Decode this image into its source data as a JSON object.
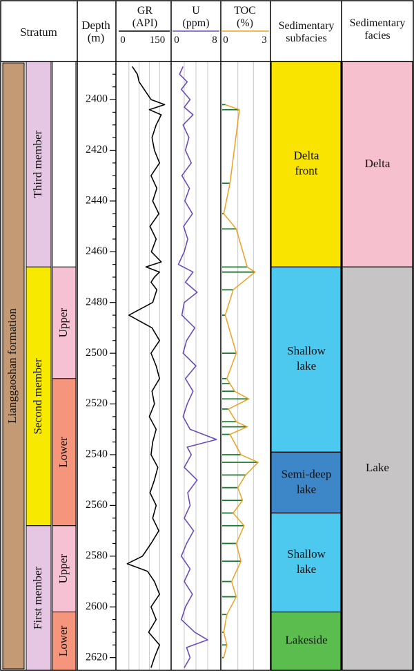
{
  "header": {
    "stratum": "Stratum",
    "depth": [
      "Depth",
      "(m)"
    ],
    "gr": {
      "name": "GR",
      "unit": "(API)",
      "min": "0",
      "max": "150"
    },
    "u": {
      "name": "U",
      "unit": "(ppm)",
      "min": "0",
      "max": "8"
    },
    "toc": {
      "name": "TOC",
      "unit": "(%)",
      "min": "0",
      "max": "3"
    },
    "subfacies": [
      "Sedimentary",
      "subfacies"
    ],
    "facies": [
      "Sedimentary",
      "facies"
    ]
  },
  "colors": {
    "formation": "#c49a75",
    "third_member": "#e5c7e3",
    "second_member": "#f7ea00",
    "first_member": "#e5c7e3",
    "upper": "#f7c1d4",
    "lower": "#f5957c",
    "delta_front": "#f9e400",
    "shallow_lake": "#4dc8ef",
    "semi_deep_lake": "#3d86c7",
    "lakeside": "#5cbd4f",
    "delta": "#f6c0cf",
    "lake": "#c6c4c5",
    "gr_curve": "#000000",
    "u_curve": "#6a4bbd",
    "toc_bar": "#1b7a2e",
    "toc_line": "#f0a020"
  },
  "formation": "Lianggaoshan formation",
  "members": [
    {
      "name": "Third member",
      "top": 2385,
      "bottom": 2466,
      "color": "third_member"
    },
    {
      "name": "Second member",
      "top": 2466,
      "bottom": 2568,
      "color": "second_member"
    },
    {
      "name": "First member",
      "top": 2568,
      "bottom": 2625,
      "color": "first_member"
    }
  ],
  "submembers": [
    {
      "name": "",
      "top": 2385,
      "bottom": 2466,
      "color": "white"
    },
    {
      "name": "Upper",
      "top": 2466,
      "bottom": 2510,
      "color": "upper"
    },
    {
      "name": "Lower",
      "top": 2510,
      "bottom": 2568,
      "color": "lower"
    },
    {
      "name": "Upper",
      "top": 2568,
      "bottom": 2602,
      "color": "upper"
    },
    {
      "name": "Lower",
      "top": 2602,
      "bottom": 2625,
      "color": "lower"
    }
  ],
  "subfacies": [
    {
      "lines": [
        "Delta",
        "front"
      ],
      "top": 2385,
      "bottom": 2466,
      "color": "delta_front"
    },
    {
      "lines": [
        "Shallow",
        "lake"
      ],
      "top": 2466,
      "bottom": 2539,
      "color": "shallow_lake"
    },
    {
      "lines": [
        "Semi-deep",
        "lake"
      ],
      "top": 2539,
      "bottom": 2563,
      "color": "semi_deep_lake"
    },
    {
      "lines": [
        "Shallow",
        "lake"
      ],
      "top": 2563,
      "bottom": 2602,
      "color": "shallow_lake"
    },
    {
      "lines": [
        "Lakeside"
      ],
      "top": 2602,
      "bottom": 2625,
      "color": "lakeside"
    }
  ],
  "facies": [
    {
      "name": "Delta",
      "top": 2385,
      "bottom": 2466,
      "color": "delta"
    },
    {
      "name": "Lake",
      "top": 2466,
      "bottom": 2625,
      "color": "lake"
    }
  ],
  "chart_data": {
    "type": "line",
    "depth_range": [
      2385,
      2625
    ],
    "depth_ticks": [
      2400,
      2420,
      2440,
      2460,
      2480,
      2500,
      2520,
      2540,
      2560,
      2580,
      2600,
      2620
    ],
    "xlabel": "",
    "ylabel": "Depth (m)",
    "series": [
      {
        "name": "GR",
        "xlim": [
          0,
          150
        ],
        "depth": [
          2387,
          2390,
          2393,
          2396,
          2400,
          2402,
          2404,
          2406,
          2410,
          2415,
          2420,
          2425,
          2430,
          2435,
          2440,
          2445,
          2450,
          2455,
          2460,
          2464,
          2466,
          2468,
          2470,
          2472,
          2475,
          2480,
          2485,
          2490,
          2495,
          2500,
          2505,
          2510,
          2515,
          2520,
          2525,
          2530,
          2535,
          2540,
          2545,
          2550,
          2555,
          2560,
          2565,
          2570,
          2575,
          2580,
          2583,
          2586,
          2590,
          2595,
          2600,
          2605,
          2610,
          2615,
          2620,
          2624
        ],
        "values": [
          40,
          55,
          60,
          75,
          95,
          135,
          90,
          125,
          110,
          98,
          105,
          120,
          95,
          112,
          100,
          118,
          92,
          110,
          96,
          125,
          80,
          120,
          105,
          95,
          112,
          100,
          30,
          98,
          120,
          95,
          110,
          120,
          98,
          105,
          90,
          110,
          100,
          95,
          115,
          105,
          92,
          110,
          100,
          118,
          95,
          70,
          25,
          85,
          105,
          120,
          95,
          110,
          88,
          120,
          105,
          95
        ]
      },
      {
        "name": "U",
        "xlim": [
          0,
          8
        ],
        "depth": [
          2387,
          2390,
          2393,
          2396,
          2400,
          2403,
          2406,
          2410,
          2415,
          2420,
          2425,
          2430,
          2435,
          2440,
          2445,
          2450,
          2455,
          2460,
          2465,
          2468,
          2472,
          2476,
          2480,
          2485,
          2490,
          2495,
          2500,
          2505,
          2510,
          2515,
          2520,
          2525,
          2530,
          2534,
          2537,
          2540,
          2545,
          2550,
          2555,
          2560,
          2565,
          2570,
          2575,
          2580,
          2585,
          2590,
          2595,
          2600,
          2605,
          2610,
          2613,
          2616,
          2620,
          2624
        ],
        "values": [
          1.8,
          1.2,
          2.5,
          1.5,
          3.0,
          2.0,
          3.5,
          1.8,
          2.8,
          2.2,
          3.2,
          1.6,
          2.9,
          2.1,
          3.4,
          1.9,
          2.6,
          2.0,
          1.0,
          3.5,
          2.2,
          4.2,
          2.0,
          1.6,
          3.8,
          2.4,
          1.8,
          4.0,
          2.2,
          3.5,
          2.5,
          1.8,
          3.0,
          7.5,
          2.5,
          3.2,
          2.0,
          4.2,
          2.6,
          3.0,
          2.0,
          3.6,
          2.4,
          1.5,
          3.0,
          2.0,
          3.4,
          2.2,
          1.5,
          3.8,
          6.0,
          2.4,
          3.0,
          2.0
        ]
      },
      {
        "name": "TOC",
        "xlim": [
          0,
          3
        ],
        "depth": [
          2402,
          2404,
          2433,
          2445,
          2451,
          2466,
          2468,
          2475,
          2485,
          2500,
          2510,
          2512,
          2515,
          2518,
          2522,
          2527,
          2529,
          2532,
          2540,
          2543,
          2548,
          2553,
          2558,
          2563,
          2568,
          2575,
          2582,
          2590,
          2596,
          2603,
          2610,
          2615,
          2620
        ],
        "values": [
          0.2,
          1.1,
          0.5,
          0.1,
          0.9,
          1.6,
          2.1,
          0.7,
          0.2,
          0.9,
          0.3,
          0.5,
          0.8,
          1.7,
          0.4,
          0.9,
          1.6,
          0.5,
          1.2,
          2.3,
          1.5,
          1.0,
          1.3,
          0.7,
          1.4,
          0.9,
          1.2,
          0.6,
          0.9,
          0.3,
          0.1,
          0.3,
          0.1
        ]
      }
    ]
  }
}
